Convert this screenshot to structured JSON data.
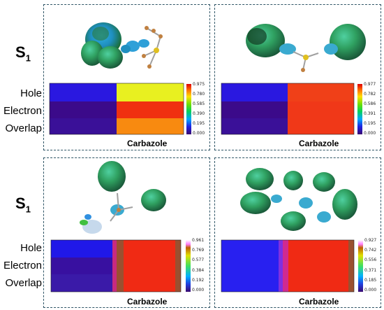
{
  "state_label": "S",
  "state_sub": "1",
  "row_labels": [
    "Hole",
    "Electron",
    "Overlap"
  ],
  "x_label": "Carbazole",
  "colorbars": [
    [
      "0.975",
      "0.780",
      "0.585",
      "0.390",
      "0.195",
      "0.000"
    ],
    [
      "0.977",
      "0.782",
      "0.586",
      "0.391",
      "0.195",
      "0.000"
    ],
    [
      "0.961",
      "0.769",
      "0.577",
      "0.384",
      "0.192",
      "0.000"
    ],
    [
      "0.927",
      "0.742",
      "0.556",
      "0.371",
      "0.185",
      "0.000"
    ]
  ]
}
